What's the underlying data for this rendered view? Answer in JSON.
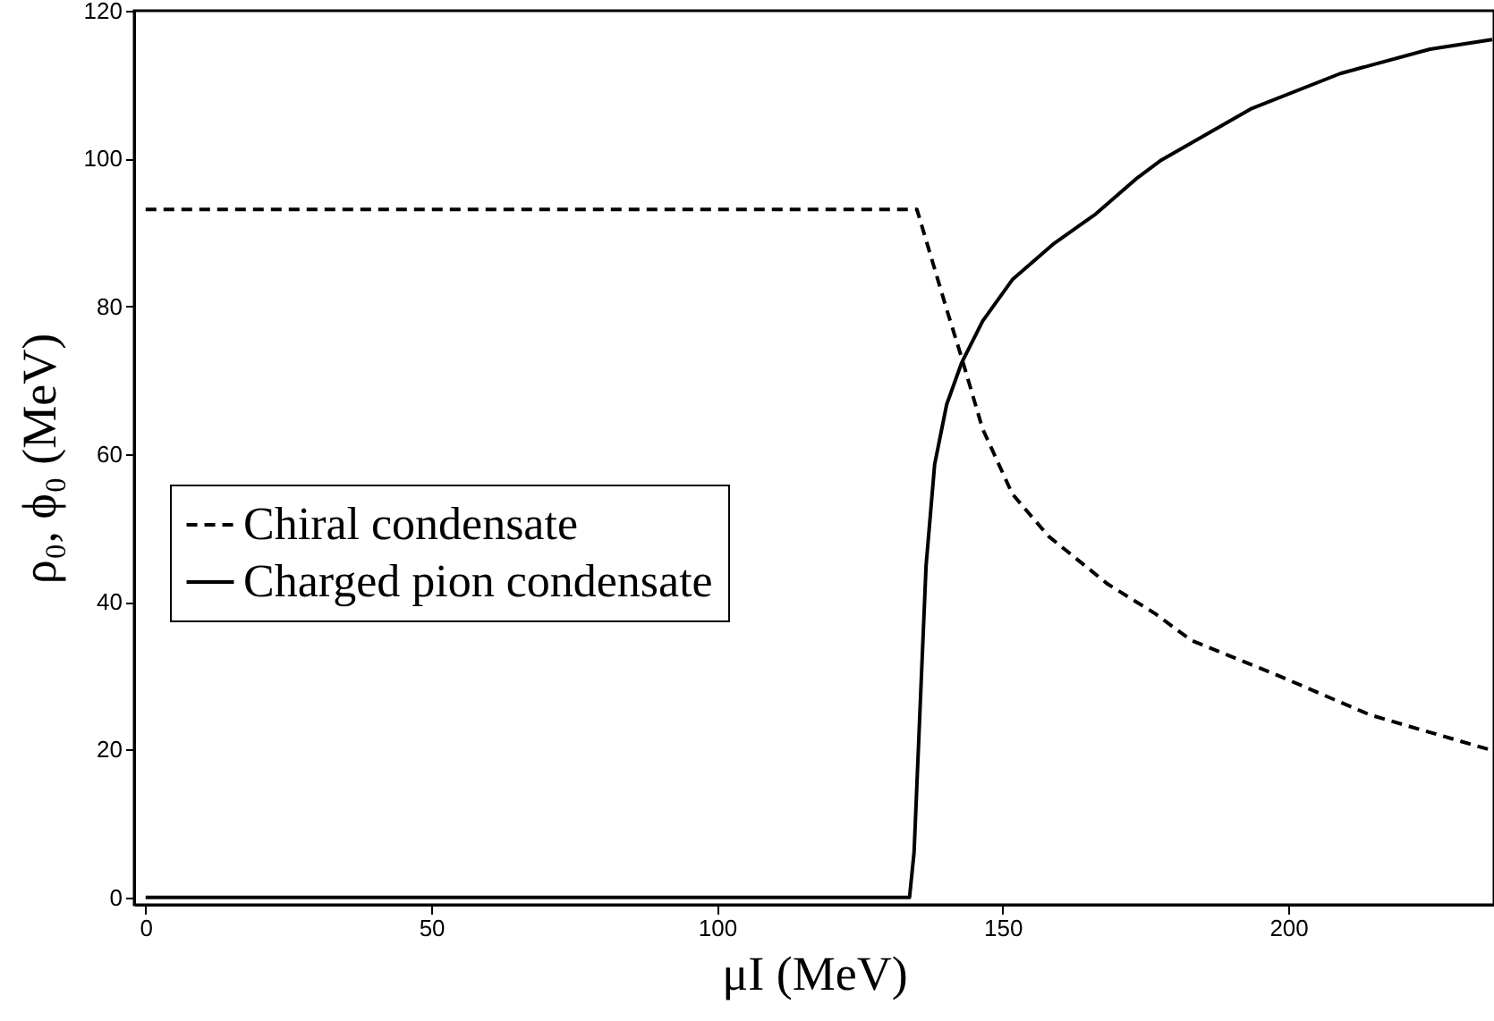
{
  "chart_data": {
    "type": "line",
    "xlabel": "μI (MeV)",
    "ylabel": "ρ₀, ϕ₀ (MeV)",
    "xlim": [
      -2,
      236
    ],
    "ylim": [
      -1,
      120
    ],
    "xticks": [
      0,
      50,
      100,
      150,
      200
    ],
    "yticks": [
      0,
      20,
      40,
      60,
      80,
      100,
      120
    ],
    "grid": false,
    "legend": "left",
    "marker": "none",
    "series": [
      {
        "name": "Chiral condensate",
        "color": "#000000",
        "line_style": "dashed",
        "x": [
          0,
          135,
          140.2,
          142.8,
          146.5,
          151.7,
          158,
          168.4,
          176.7,
          183,
          198.6,
          214.3,
          235.2
        ],
        "values": [
          93.1,
          93.1,
          79.6,
          73.1,
          63.4,
          54.6,
          48.9,
          42.4,
          38.4,
          34.8,
          29.9,
          24.7,
          20.0
        ]
      },
      {
        "name": "Charged pion condensate",
        "color": "#000000",
        "line_style": "solid",
        "x": [
          0,
          133.7,
          134.5,
          135.5,
          136.6,
          138.1,
          140.2,
          142.8,
          146.5,
          151.7,
          159,
          166.3,
          173.6,
          177.8,
          193.4,
          209.1,
          224.8,
          235.7
        ],
        "values": [
          0,
          0,
          6.1,
          24.7,
          44.9,
          58.6,
          66.7,
          72.3,
          78,
          83.6,
          88.5,
          92.5,
          97.4,
          99.8,
          106.7,
          111.5,
          114.8,
          116.1
        ]
      }
    ]
  }
}
